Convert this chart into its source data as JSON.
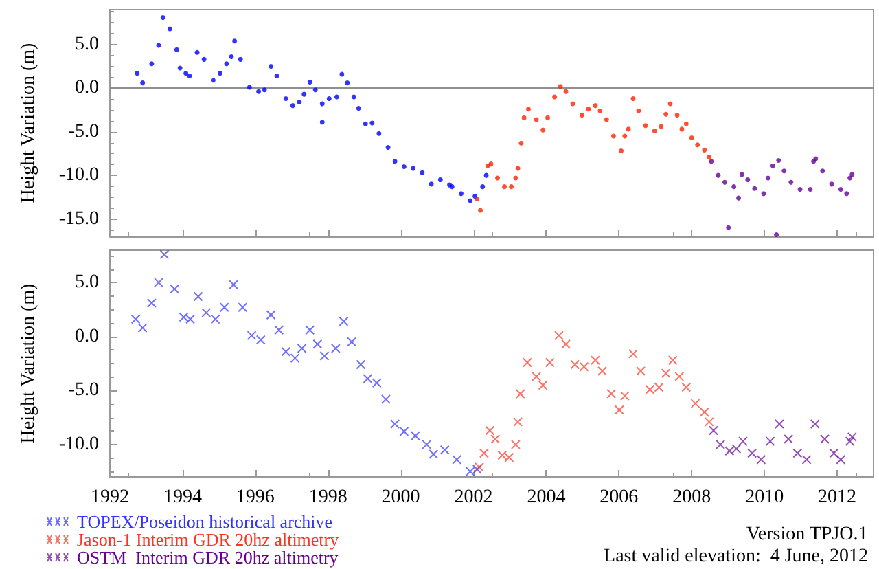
{
  "chart_data": [
    {
      "type": "scatter",
      "ylabel": "Height Variation (m)",
      "xlim": [
        1992,
        2013
      ],
      "ylim": [
        -17,
        9
      ],
      "xticks": [
        1992,
        1994,
        1996,
        1998,
        2000,
        2002,
        2004,
        2006,
        2008,
        2010,
        2012
      ],
      "yticks": [
        {
          "value": -15,
          "label": "-15.0"
        },
        {
          "value": -10,
          "label": "-10.0"
        },
        {
          "value": -5,
          "label": "-5.0"
        },
        {
          "value": 0,
          "label": "0.0"
        },
        {
          "value": 5,
          "label": "5.0"
        }
      ],
      "tick_labels": "y",
      "marker": "circle",
      "grid": false,
      "legend": false,
      "ref_lines": [
        {
          "axis": "y",
          "value": 0,
          "color": "#909090"
        }
      ],
      "series": [
        {
          "color": "#0000ff",
          "x": [
            1992.75,
            1992.9,
            1993.15,
            1993.34,
            1993.46,
            1993.65,
            1993.84,
            1993.93,
            1994.09,
            1994.19,
            1994.4,
            1994.59,
            1994.84,
            1995.03,
            1995.21,
            1995.34,
            1995.43,
            1995.59,
            1995.84,
            1996.09,
            1996.25,
            1996.43,
            1996.59,
            1996.84,
            1997.03,
            1997.21,
            1997.34,
            1997.5,
            1997.65,
            1997.84,
            1997.84,
            1998.03,
            1998.24,
            1998.38,
            1998.53,
            1998.71,
            1998.84,
            1999.03,
            1999.21,
            1999.4,
            1999.65,
            1999.84,
            2000.09,
            2000.34,
            2000.59,
            2000.84,
            2001.09,
            2001.34,
            2001.41,
            2001.66,
            2001.91,
            2002.04,
            2002.25,
            2002.35
          ],
          "values": [
            1.7,
            0.6,
            2.8,
            4.9,
            8.1,
            6.8,
            4.4,
            2.3,
            1.7,
            1.4,
            4.1,
            3.3,
            0.9,
            1.7,
            2.8,
            3.6,
            5.4,
            3.3,
            0.1,
            -0.4,
            -0.2,
            2.5,
            1.4,
            -1.2,
            -2.0,
            -1.6,
            -0.7,
            0.7,
            -0.2,
            -1.8,
            -3.9,
            -1.2,
            -1.0,
            1.6,
            0.6,
            -1.0,
            -2.3,
            -4.1,
            -4.0,
            -5.2,
            -6.8,
            -8.4,
            -9.0,
            -9.2,
            -9.7,
            -11.0,
            -10.5,
            -11.1,
            -11.3,
            -12.1,
            -12.9,
            -12.4,
            -11.3,
            -10.0
          ]
        },
        {
          "color": "#ff2200",
          "x": [
            2002.1,
            2002.19,
            2002.39,
            2002.48,
            2002.66,
            2002.85,
            2003.04,
            2003.16,
            2003.22,
            2003.31,
            2003.39,
            2003.51,
            2003.73,
            2003.91,
            2004.04,
            2004.23,
            2004.39,
            2004.54,
            2004.73,
            2004.98,
            2005.16,
            2005.35,
            2005.48,
            2005.66,
            2005.85,
            2006.06,
            2006.16,
            2006.26,
            2006.39,
            2006.54,
            2006.73,
            2006.98,
            2007.16,
            2007.29,
            2007.41,
            2007.6,
            2007.73,
            2007.85,
            2008.0,
            2008.16,
            2008.35,
            2008.48
          ],
          "values": [
            -12.7,
            -14.0,
            -8.9,
            -8.7,
            -10.3,
            -11.3,
            -11.3,
            -10.3,
            -9.2,
            -6.3,
            -3.4,
            -2.4,
            -3.6,
            -4.8,
            -3.4,
            -1.0,
            0.2,
            -0.4,
            -1.8,
            -3.1,
            -2.4,
            -2.0,
            -2.6,
            -3.6,
            -5.5,
            -7.2,
            -5.5,
            -4.7,
            -1.2,
            -2.6,
            -4.3,
            -4.9,
            -4.4,
            -3.0,
            -1.8,
            -3.1,
            -4.7,
            -4.1,
            -5.7,
            -6.5,
            -7.1,
            -7.9
          ]
        },
        {
          "color": "#660099",
          "x": [
            2008.54,
            2008.73,
            2008.91,
            2009.01,
            2009.16,
            2009.29,
            2009.38,
            2009.54,
            2009.73,
            2009.98,
            2010.1,
            2010.23,
            2010.33,
            2010.39,
            2010.54,
            2010.73,
            2010.98,
            2011.26,
            2011.35,
            2011.41,
            2011.6,
            2011.85,
            2012.1,
            2012.26,
            2012.35,
            2012.41
          ],
          "values": [
            -8.4,
            -10.0,
            -10.8,
            -16.0,
            -11.3,
            -12.6,
            -9.9,
            -10.5,
            -11.5,
            -12.1,
            -10.3,
            -8.9,
            -16.8,
            -8.3,
            -9.5,
            -10.8,
            -11.6,
            -11.6,
            -8.4,
            -8.1,
            -9.5,
            -11.0,
            -11.6,
            -12.1,
            -10.3,
            -9.9
          ]
        }
      ]
    },
    {
      "type": "scatter",
      "ylabel": "Height Variation (m)",
      "xlim": [
        1992,
        2013
      ],
      "ylim": [
        -13,
        8
      ],
      "xticks": [
        1992,
        1994,
        1996,
        1998,
        2000,
        2002,
        2004,
        2006,
        2008,
        2010,
        2012
      ],
      "yticks": [
        {
          "value": -10,
          "label": "-10.0"
        },
        {
          "value": -5,
          "label": "-5.0"
        },
        {
          "value": 0,
          "label": "0.0"
        },
        {
          "value": 5,
          "label": "5.0"
        }
      ],
      "marker": "cross",
      "grid": false,
      "legend": "bottom left",
      "annotations": [
        "Version TPJO.1",
        "Last valid elevation:  4 June, 2012"
      ],
      "series": [
        {
          "name": "TOPEX/Poseidon historical archive",
          "color": "#3333ff",
          "x": [
            1992.71,
            1992.9,
            1993.15,
            1993.34,
            1993.5,
            1993.78,
            1994.03,
            1994.21,
            1994.43,
            1994.65,
            1994.9,
            1995.15,
            1995.4,
            1995.65,
            1995.9,
            1996.15,
            1996.43,
            1996.65,
            1996.84,
            1997.09,
            1997.28,
            1997.5,
            1997.71,
            1997.9,
            1998.21,
            1998.43,
            1998.65,
            1998.9,
            1999.09,
            1999.34,
            1999.59,
            1999.84,
            2000.09,
            2000.4,
            2000.71,
            2000.9,
            2001.21,
            2001.54,
            2001.91,
            2002.1
          ],
          "values": [
            1.6,
            0.8,
            3.1,
            5.0,
            7.6,
            4.4,
            1.8,
            1.6,
            3.7,
            2.2,
            1.6,
            2.7,
            4.8,
            2.7,
            0.1,
            -0.3,
            2.0,
            0.6,
            -1.4,
            -2.0,
            -1.1,
            0.6,
            -0.7,
            -1.8,
            -1.1,
            1.4,
            -0.5,
            -2.6,
            -3.9,
            -4.3,
            -5.8,
            -8.1,
            -8.8,
            -9.2,
            -10.0,
            -10.9,
            -10.5,
            -11.4,
            -12.5,
            -12.3
          ]
        },
        {
          "name": "Jason-1 Interim GDR 20hz altimetry",
          "color": "#ff3322",
          "x": [
            2002.16,
            2002.29,
            2002.45,
            2002.6,
            2002.79,
            2002.98,
            2003.16,
            2003.22,
            2003.29,
            2003.48,
            2003.73,
            2003.91,
            2004.1,
            2004.35,
            2004.54,
            2004.79,
            2005.04,
            2005.35,
            2005.54,
            2005.79,
            2006.01,
            2006.16,
            2006.39,
            2006.6,
            2006.85,
            2007.1,
            2007.29,
            2007.48,
            2007.66,
            2007.85,
            2008.1,
            2008.35,
            2008.48
          ],
          "values": [
            -12.1,
            -10.8,
            -8.7,
            -9.5,
            -11.0,
            -11.2,
            -10.0,
            -7.9,
            -5.3,
            -2.4,
            -3.7,
            -4.5,
            -2.4,
            0.1,
            -0.7,
            -2.6,
            -2.8,
            -2.2,
            -3.2,
            -5.3,
            -6.8,
            -5.5,
            -1.6,
            -3.2,
            -4.9,
            -4.7,
            -3.4,
            -2.2,
            -3.7,
            -4.7,
            -6.2,
            -7.0,
            -7.9
          ]
        },
        {
          "name": "OSTM  Interim GDR 20hz altimetry",
          "color": "#660099",
          "x": [
            2008.6,
            2008.79,
            2009.04,
            2009.23,
            2009.41,
            2009.66,
            2009.91,
            2010.16,
            2010.41,
            2010.66,
            2010.91,
            2011.16,
            2011.39,
            2011.66,
            2011.91,
            2012.1,
            2012.35,
            2012.41
          ],
          "values": [
            -8.7,
            -10.0,
            -10.6,
            -10.4,
            -9.7,
            -10.8,
            -11.4,
            -9.7,
            -8.1,
            -9.5,
            -10.8,
            -11.4,
            -8.1,
            -9.5,
            -10.8,
            -11.4,
            -9.7,
            -9.3
          ]
        }
      ]
    }
  ]
}
